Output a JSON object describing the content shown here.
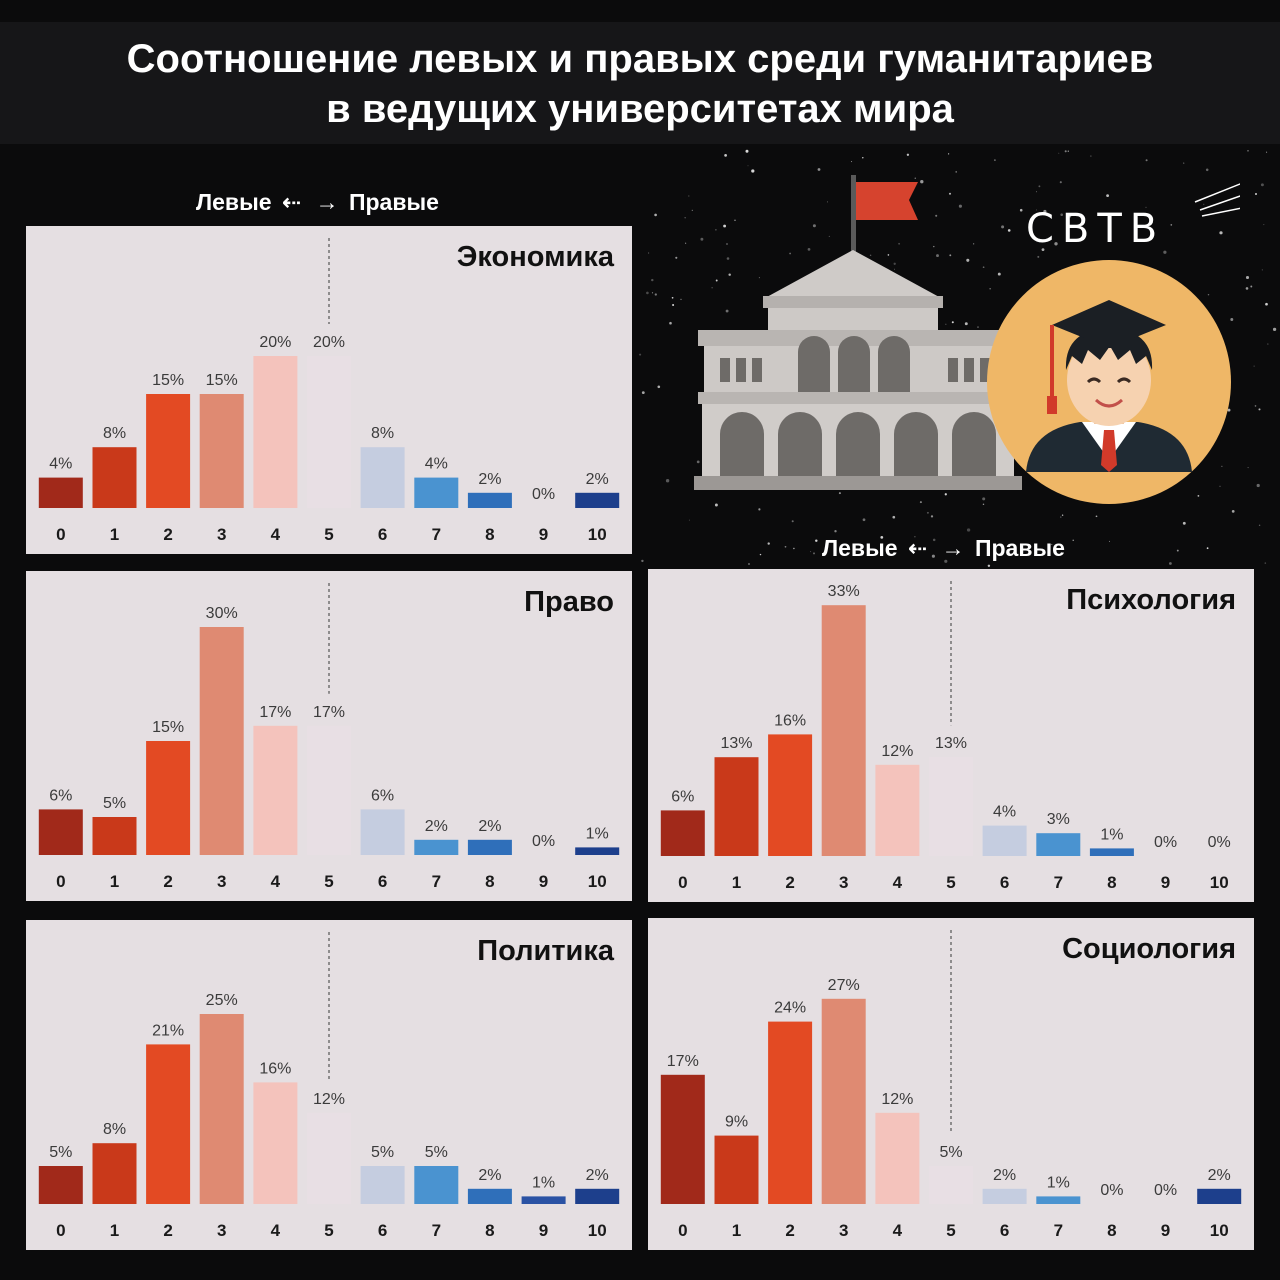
{
  "title": {
    "line1": "Соотношение левых и правых среди гуманитариев",
    "line2": "в ведущих университетах мира"
  },
  "scale_labels": [
    {
      "left": "Левые",
      "right": "Правые"
    },
    {
      "left": "Левые",
      "right": "Правые"
    }
  ],
  "logo": "СВТВ",
  "colors": {
    "scale": [
      "#a1291a",
      "#c9391a",
      "#e34a23",
      "#df8a72",
      "#f4c3bc",
      "#e8dfe4",
      "#c5cde0",
      "#4a93d0",
      "#2f6fba",
      "#2a52a4",
      "#1d3f8c"
    ]
  },
  "chart_data": [
    {
      "type": "bar",
      "title": "Экономика",
      "categories": [
        "0",
        "1",
        "2",
        "3",
        "4",
        "5",
        "6",
        "7",
        "8",
        "9",
        "10"
      ],
      "values": [
        4,
        8,
        15,
        15,
        20,
        20,
        8,
        4,
        2,
        0,
        2
      ],
      "value_labels": [
        "4%",
        "8%",
        "15%",
        "15%",
        "20%",
        "20%",
        "8%",
        "4%",
        "2%",
        "0%",
        "2%"
      ],
      "center_line": true
    },
    {
      "type": "bar",
      "title": "Право",
      "categories": [
        "0",
        "1",
        "2",
        "3",
        "4",
        "5",
        "6",
        "7",
        "8",
        "9",
        "10"
      ],
      "values": [
        6,
        5,
        15,
        30,
        17,
        17,
        6,
        2,
        2,
        0,
        1
      ],
      "value_labels": [
        "6%",
        "5%",
        "15%",
        "30%",
        "17%",
        "17%",
        "6%",
        "2%",
        "2%",
        "0%",
        "1%"
      ],
      "center_line": true
    },
    {
      "type": "bar",
      "title": "Политика",
      "categories": [
        "0",
        "1",
        "2",
        "3",
        "4",
        "5",
        "6",
        "7",
        "8",
        "9",
        "10"
      ],
      "values": [
        5,
        8,
        21,
        25,
        16,
        12,
        5,
        5,
        2,
        1,
        2
      ],
      "value_labels": [
        "5%",
        "8%",
        "21%",
        "25%",
        "16%",
        "12%",
        "5%",
        "5%",
        "2%",
        "1%",
        "2%"
      ],
      "center_line": true
    },
    {
      "type": "bar",
      "title": "Психология",
      "categories": [
        "0",
        "1",
        "2",
        "3",
        "4",
        "5",
        "6",
        "7",
        "8",
        "9",
        "10"
      ],
      "values": [
        6,
        13,
        16,
        33,
        12,
        13,
        4,
        3,
        1,
        0,
        0
      ],
      "value_labels": [
        "6%",
        "13%",
        "16%",
        "33%",
        "12%",
        "13%",
        "4%",
        "3%",
        "1%",
        "0%",
        "0%"
      ],
      "center_line": true
    },
    {
      "type": "bar",
      "title": "Социология",
      "categories": [
        "0",
        "1",
        "2",
        "3",
        "4",
        "5",
        "6",
        "7",
        "8",
        "9",
        "10"
      ],
      "values": [
        17,
        9,
        24,
        27,
        12,
        5,
        2,
        1,
        0,
        0,
        2
      ],
      "value_labels": [
        "17%",
        "9%",
        "24%",
        "27%",
        "12%",
        "5%",
        "2%",
        "1%",
        "0%",
        "0%",
        "2%"
      ],
      "center_line": true
    }
  ]
}
